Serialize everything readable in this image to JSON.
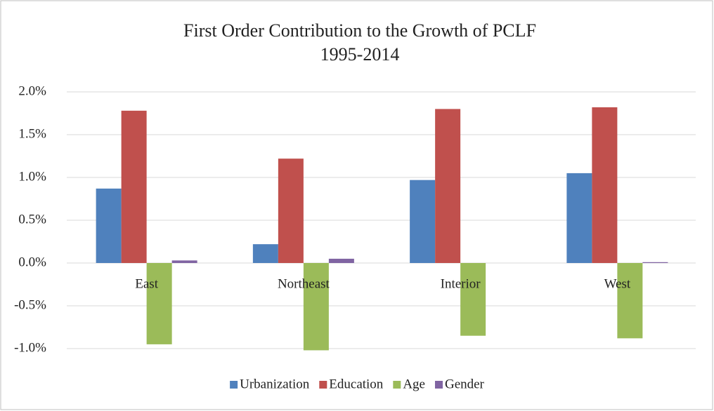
{
  "chart_data": {
    "type": "bar",
    "title": "First Order Contribution to the Growth of PCLF",
    "subtitle": "1995-2014",
    "categories": [
      "East",
      "Northeast",
      "Interior",
      "West"
    ],
    "series": [
      {
        "name": "Urbanization",
        "color": "#4f81bd",
        "values": [
          0.87,
          0.22,
          0.97,
          1.05
        ]
      },
      {
        "name": "Education",
        "color": "#c0504d",
        "values": [
          1.78,
          1.22,
          1.8,
          1.82
        ]
      },
      {
        "name": "Age",
        "color": "#9bbb59",
        "values": [
          -0.95,
          -1.02,
          -0.85,
          -0.88
        ]
      },
      {
        "name": "Gender",
        "color": "#8064a2",
        "values": [
          0.03,
          0.05,
          0.0,
          0.01
        ]
      }
    ],
    "ylim": [
      -1.0,
      2.0
    ],
    "yticks": [
      {
        "value": 2.0,
        "label": "2.0%"
      },
      {
        "value": 1.5,
        "label": "1.5%"
      },
      {
        "value": 1.0,
        "label": "1.0%"
      },
      {
        "value": 0.5,
        "label": "0.5%"
      },
      {
        "value": 0.0,
        "label": "0.0%"
      },
      {
        "value": -0.5,
        "label": "-0.5%"
      },
      {
        "value": -1.0,
        "label": "-1.0%"
      }
    ],
    "grid": true,
    "legend": "bottom"
  }
}
